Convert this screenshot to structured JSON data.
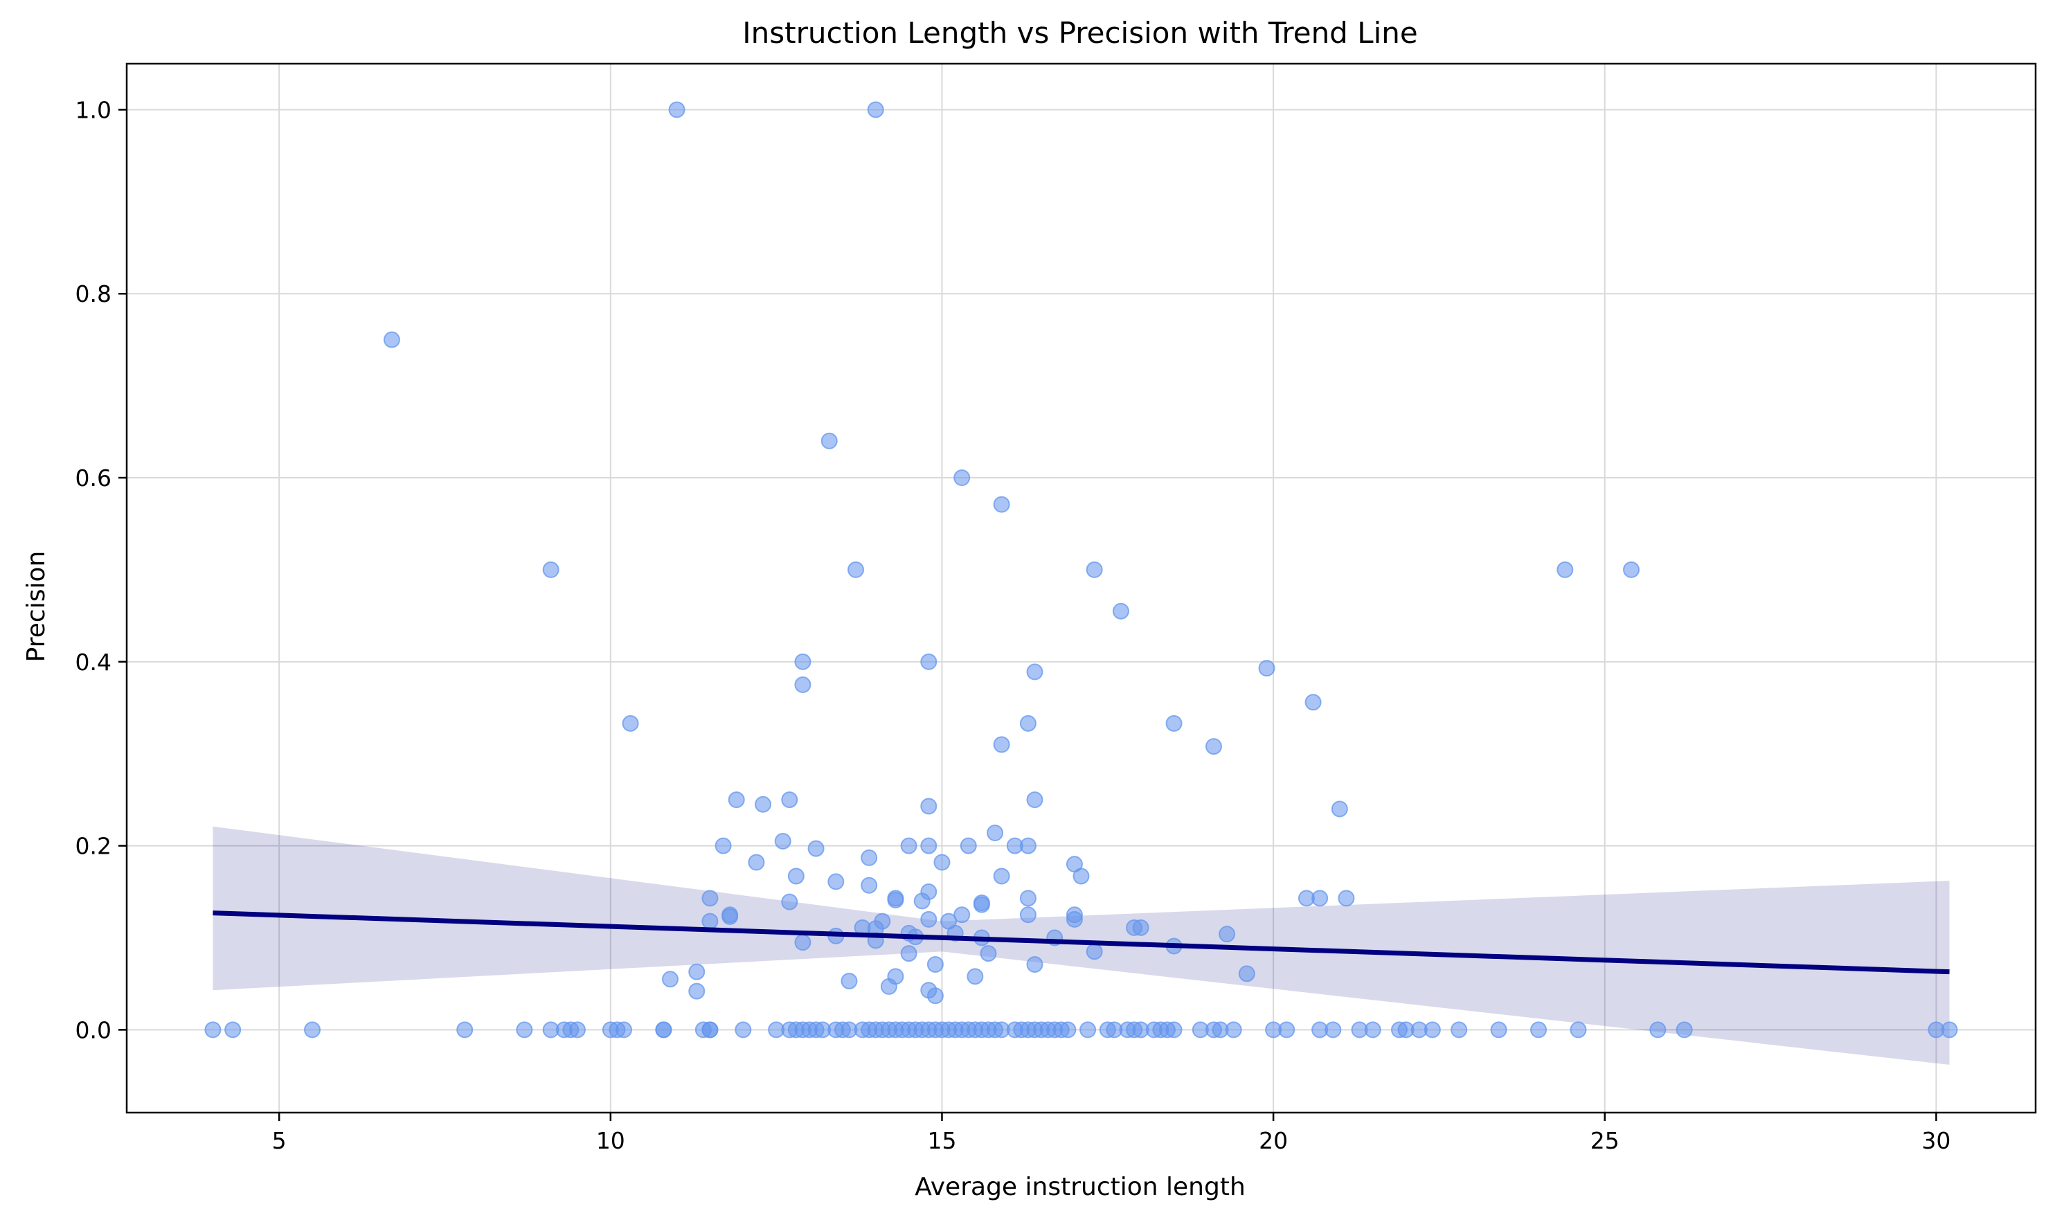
{
  "chart_data": {
    "type": "scatter",
    "title": "Instruction Length vs Precision with Trend Line",
    "xlabel": "Average instruction length",
    "ylabel": "Precision",
    "xlim": [
      2.7,
      31.5
    ],
    "ylim": [
      -0.09,
      1.05
    ],
    "xticks": [
      5,
      10,
      15,
      20,
      25,
      30
    ],
    "yticks": [
      0.0,
      0.2,
      0.4,
      0.6,
      0.8,
      1.0
    ],
    "ytick_labels": [
      "0.0",
      "0.2",
      "0.4",
      "0.6",
      "0.8",
      "1.0"
    ],
    "grid": true,
    "point_color": "#6495ED",
    "trend_color": "#000080",
    "trend_line": {
      "x": [
        4.0,
        30.2
      ],
      "y": [
        0.127,
        0.063
      ]
    },
    "confidence_band": {
      "x": [
        4.0,
        15.0,
        30.2
      ],
      "lower": [
        0.043,
        0.085,
        -0.038
      ],
      "upper": [
        0.221,
        0.118,
        0.162
      ]
    },
    "points": [
      [
        11.0,
        1.0
      ],
      [
        14.0,
        1.0
      ],
      [
        6.7,
        0.75
      ],
      [
        13.3,
        0.64
      ],
      [
        15.3,
        0.6
      ],
      [
        15.9,
        0.571
      ],
      [
        9.1,
        0.5
      ],
      [
        13.7,
        0.5
      ],
      [
        17.3,
        0.5
      ],
      [
        24.4,
        0.5
      ],
      [
        25.4,
        0.5
      ],
      [
        17.7,
        0.455
      ],
      [
        12.9,
        0.4
      ],
      [
        14.8,
        0.4
      ],
      [
        19.9,
        0.393
      ],
      [
        16.4,
        0.389
      ],
      [
        12.9,
        0.375
      ],
      [
        20.6,
        0.356
      ],
      [
        10.3,
        0.333
      ],
      [
        16.3,
        0.333
      ],
      [
        18.5,
        0.333
      ],
      [
        15.9,
        0.31
      ],
      [
        19.1,
        0.308
      ],
      [
        11.9,
        0.25
      ],
      [
        12.7,
        0.25
      ],
      [
        16.4,
        0.25
      ],
      [
        12.3,
        0.245
      ],
      [
        14.8,
        0.243
      ],
      [
        21.0,
        0.24
      ],
      [
        15.8,
        0.214
      ],
      [
        12.6,
        0.205
      ],
      [
        11.7,
        0.2
      ],
      [
        14.5,
        0.2
      ],
      [
        14.8,
        0.2
      ],
      [
        15.4,
        0.2
      ],
      [
        16.1,
        0.2
      ],
      [
        16.3,
        0.2
      ],
      [
        13.1,
        0.197
      ],
      [
        13.9,
        0.187
      ],
      [
        12.2,
        0.182
      ],
      [
        15.0,
        0.182
      ],
      [
        17.0,
        0.18
      ],
      [
        12.8,
        0.167
      ],
      [
        15.9,
        0.167
      ],
      [
        17.1,
        0.167
      ],
      [
        13.4,
        0.161
      ],
      [
        13.9,
        0.157
      ],
      [
        14.8,
        0.15
      ],
      [
        11.5,
        0.143
      ],
      [
        14.3,
        0.143
      ],
      [
        14.3,
        0.141
      ],
      [
        14.7,
        0.14
      ],
      [
        12.7,
        0.139
      ],
      [
        15.6,
        0.138
      ],
      [
        15.6,
        0.136
      ],
      [
        16.3,
        0.143
      ],
      [
        20.5,
        0.143
      ],
      [
        20.7,
        0.143
      ],
      [
        21.1,
        0.143
      ],
      [
        11.8,
        0.125
      ],
      [
        11.8,
        0.123
      ],
      [
        15.3,
        0.125
      ],
      [
        16.3,
        0.125
      ],
      [
        17.0,
        0.125
      ],
      [
        11.5,
        0.118
      ],
      [
        14.1,
        0.118
      ],
      [
        14.8,
        0.12
      ],
      [
        15.1,
        0.118
      ],
      [
        17.0,
        0.12
      ],
      [
        13.8,
        0.111
      ],
      [
        14.0,
        0.11
      ],
      [
        17.9,
        0.111
      ],
      [
        18.0,
        0.111
      ],
      [
        14.5,
        0.105
      ],
      [
        15.2,
        0.105
      ],
      [
        13.4,
        0.102
      ],
      [
        14.6,
        0.101
      ],
      [
        15.6,
        0.1
      ],
      [
        16.7,
        0.1
      ],
      [
        19.3,
        0.104
      ],
      [
        12.9,
        0.095
      ],
      [
        14.0,
        0.097
      ],
      [
        18.5,
        0.091
      ],
      [
        14.5,
        0.083
      ],
      [
        15.7,
        0.083
      ],
      [
        17.3,
        0.085
      ],
      [
        14.9,
        0.071
      ],
      [
        16.4,
        0.071
      ],
      [
        11.3,
        0.063
      ],
      [
        19.6,
        0.061
      ],
      [
        14.3,
        0.058
      ],
      [
        15.5,
        0.058
      ],
      [
        10.9,
        0.055
      ],
      [
        13.6,
        0.053
      ],
      [
        14.2,
        0.047
      ],
      [
        14.8,
        0.043
      ],
      [
        11.3,
        0.042
      ],
      [
        14.9,
        0.037
      ],
      [
        4.0,
        0.0
      ],
      [
        4.3,
        0.0
      ],
      [
        5.5,
        0.0
      ],
      [
        7.8,
        0.0
      ],
      [
        8.7,
        0.0
      ],
      [
        9.1,
        0.0
      ],
      [
        9.3,
        0.0
      ],
      [
        9.4,
        0.0
      ],
      [
        9.5,
        0.0
      ],
      [
        10.0,
        0.0
      ],
      [
        10.1,
        0.0
      ],
      [
        10.2,
        0.0
      ],
      [
        10.8,
        0.0
      ],
      [
        10.8,
        0.0
      ],
      [
        11.4,
        0.0
      ],
      [
        11.5,
        0.0
      ],
      [
        11.5,
        0.0
      ],
      [
        12.0,
        0.0
      ],
      [
        12.5,
        0.0
      ],
      [
        12.7,
        0.0
      ],
      [
        12.8,
        0.0
      ],
      [
        12.9,
        0.0
      ],
      [
        13.0,
        0.0
      ],
      [
        13.1,
        0.0
      ],
      [
        13.2,
        0.0
      ],
      [
        13.4,
        0.0
      ],
      [
        13.5,
        0.0
      ],
      [
        13.6,
        0.0
      ],
      [
        13.8,
        0.0
      ],
      [
        13.9,
        0.0
      ],
      [
        14.0,
        0.0
      ],
      [
        14.1,
        0.0
      ],
      [
        14.2,
        0.0
      ],
      [
        14.3,
        0.0
      ],
      [
        14.4,
        0.0
      ],
      [
        14.5,
        0.0
      ],
      [
        14.6,
        0.0
      ],
      [
        14.7,
        0.0
      ],
      [
        14.8,
        0.0
      ],
      [
        14.9,
        0.0
      ],
      [
        15.0,
        0.0
      ],
      [
        15.1,
        0.0
      ],
      [
        15.2,
        0.0
      ],
      [
        15.3,
        0.0
      ],
      [
        15.4,
        0.0
      ],
      [
        15.5,
        0.0
      ],
      [
        15.6,
        0.0
      ],
      [
        15.7,
        0.0
      ],
      [
        15.8,
        0.0
      ],
      [
        15.9,
        0.0
      ],
      [
        16.1,
        0.0
      ],
      [
        16.2,
        0.0
      ],
      [
        16.3,
        0.0
      ],
      [
        16.4,
        0.0
      ],
      [
        16.5,
        0.0
      ],
      [
        16.6,
        0.0
      ],
      [
        16.7,
        0.0
      ],
      [
        16.8,
        0.0
      ],
      [
        16.9,
        0.0
      ],
      [
        17.2,
        0.0
      ],
      [
        17.5,
        0.0
      ],
      [
        17.6,
        0.0
      ],
      [
        17.8,
        0.0
      ],
      [
        17.9,
        0.0
      ],
      [
        18.0,
        0.0
      ],
      [
        18.2,
        0.0
      ],
      [
        18.3,
        0.0
      ],
      [
        18.4,
        0.0
      ],
      [
        18.5,
        0.0
      ],
      [
        18.9,
        0.0
      ],
      [
        19.1,
        0.0
      ],
      [
        19.2,
        0.0
      ],
      [
        19.4,
        0.0
      ],
      [
        20.0,
        0.0
      ],
      [
        20.2,
        0.0
      ],
      [
        20.7,
        0.0
      ],
      [
        20.9,
        0.0
      ],
      [
        21.3,
        0.0
      ],
      [
        21.5,
        0.0
      ],
      [
        21.9,
        0.0
      ],
      [
        22.0,
        0.0
      ],
      [
        22.2,
        0.0
      ],
      [
        22.4,
        0.0
      ],
      [
        22.8,
        0.0
      ],
      [
        23.4,
        0.0
      ],
      [
        24.0,
        0.0
      ],
      [
        24.6,
        0.0
      ],
      [
        25.8,
        0.0
      ],
      [
        26.2,
        0.0
      ],
      [
        30.0,
        0.0
      ],
      [
        30.2,
        0.0
      ]
    ]
  }
}
